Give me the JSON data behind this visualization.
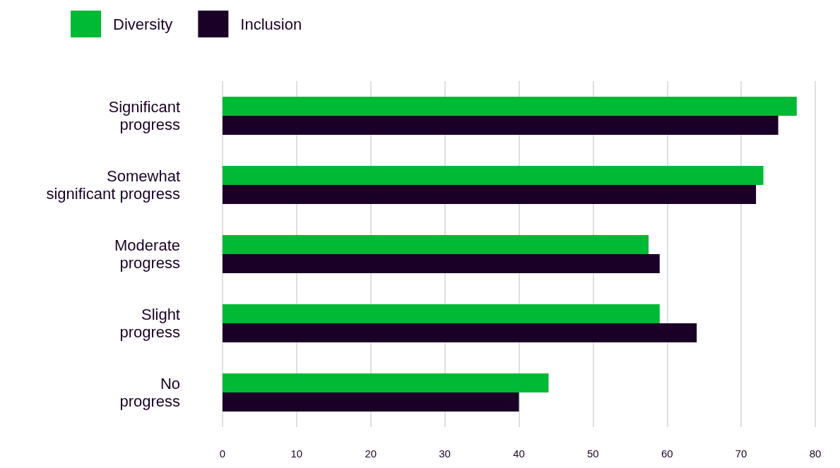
{
  "chart_data": {
    "type": "bar",
    "orientation": "horizontal",
    "categories": [
      "Significant\nprogress",
      "Somewhat\nsignificant progress",
      "Moderate\nprogress",
      "Slight\nprogress",
      "No\nprogress"
    ],
    "series": [
      {
        "name": "Diversity",
        "color": "#00b935",
        "values": [
          77.5,
          73,
          57.5,
          59,
          44
        ]
      },
      {
        "name": "Inclusion",
        "color": "#1a0026",
        "values": [
          75,
          72,
          59,
          64,
          40
        ]
      }
    ],
    "xlim": [
      0,
      80
    ],
    "xticks": [
      0,
      10,
      20,
      30,
      40,
      50,
      60,
      70,
      80
    ],
    "grid": "x",
    "legend": "top left"
  }
}
